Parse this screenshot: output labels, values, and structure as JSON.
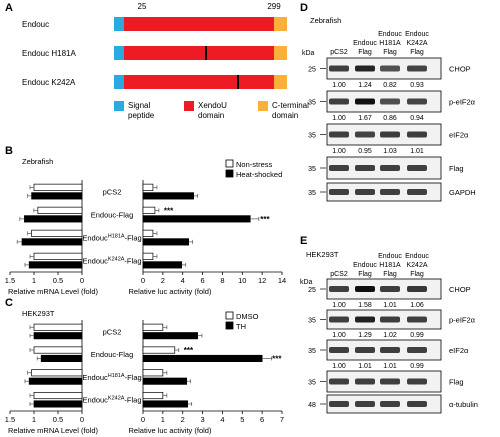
{
  "panels": {
    "A": {
      "letter": "A",
      "constructs": [
        {
          "name": "Endouc",
          "mutation_mark": ""
        },
        {
          "name": "Endouc H181A",
          "mutation_mark": "H181A"
        },
        {
          "name": "Endouc K242A",
          "mutation_mark": "K242A"
        }
      ],
      "positions": {
        "start": "25",
        "end": "299"
      },
      "legend": [
        {
          "label_lines": [
            "Signal",
            "peptide"
          ],
          "color": "#29ABE2"
        },
        {
          "label_lines": [
            "XendoU",
            "domain"
          ],
          "color": "#ED1C24"
        },
        {
          "label_lines": [
            "C-terminal",
            "domain"
          ],
          "color": "#FBB03B"
        }
      ]
    },
    "B": {
      "letter": "B",
      "species": "Zebrafish",
      "legend": [
        {
          "label": "Non-stress",
          "fill": "#ffffff"
        },
        {
          "label": "Heat-shocked",
          "fill": "#000000"
        }
      ],
      "row_labels": [
        {
          "base": "pCS2",
          "sup": "",
          "tail": ""
        },
        {
          "base": "Endouc-Flag",
          "sup": "",
          "tail": ""
        },
        {
          "base": "Endouc",
          "sup": "H181A",
          "tail": "-Flag"
        },
        {
          "base": "Endouc",
          "sup": "K242A",
          "tail": "-Flag"
        }
      ],
      "left_chart": {
        "xlabel": "Relative mRNA Level (fold)",
        "ticks": [
          "1.5",
          "1",
          "0.5",
          "0"
        ],
        "chart_data": {
          "type": "bar",
          "categories": [
            "pCS2",
            "Endouc-Flag",
            "EndoucH181A-Flag",
            "EndoucK242A-Flag"
          ],
          "series": [
            {
              "name": "Non-stress",
              "values": [
                1.0,
                0.92,
                1.05,
                1.0
              ]
            },
            {
              "name": "Heat-shocked",
              "values": [
                1.05,
                1.2,
                1.25,
                1.1
              ]
            }
          ],
          "xlim": [
            0,
            1.5
          ]
        }
      },
      "right_chart": {
        "xlabel": "Relative luc activity (fold)",
        "ticks": [
          "0",
          "2",
          "4",
          "6",
          "8",
          "10",
          "12",
          "14"
        ],
        "significance": [
          "***",
          "***"
        ],
        "chart_data": {
          "type": "bar",
          "categories": [
            "pCS2",
            "Endouc-Flag",
            "EndoucH181A-Flag",
            "EndoucK242A-Flag"
          ],
          "series": [
            {
              "name": "Non-stress",
              "values": [
                1.0,
                1.2,
                1.0,
                1.0
              ]
            },
            {
              "name": "Heat-shocked",
              "values": [
                5.1,
                10.8,
                4.6,
                3.9
              ]
            }
          ],
          "xlim": [
            0,
            14
          ]
        }
      }
    },
    "C": {
      "letter": "C",
      "species": "HEK293T",
      "legend": [
        {
          "label": "DMSO",
          "fill": "#ffffff"
        },
        {
          "label": "TH",
          "fill": "#000000"
        }
      ],
      "row_labels": [
        {
          "base": "pCS2",
          "sup": "",
          "tail": ""
        },
        {
          "base": "Endouc-Flag",
          "sup": "",
          "tail": ""
        },
        {
          "base": "Endouc",
          "sup": "H181A",
          "tail": "-Flag"
        },
        {
          "base": "Endouc",
          "sup": "K242A",
          "tail": "-Flag"
        }
      ],
      "left_chart": {
        "xlabel": "Relative mRNA Level (fold)",
        "ticks": [
          "1.5",
          "1",
          "0.5",
          "0"
        ],
        "chart_data": {
          "type": "bar",
          "categories": [
            "pCS2",
            "Endouc-Flag",
            "EndoucH181A-Flag",
            "EndoucK242A-Flag"
          ],
          "series": [
            {
              "name": "DMSO",
              "values": [
                1.0,
                1.0,
                1.05,
                1.0
              ]
            },
            {
              "name": "TH",
              "values": [
                1.0,
                0.85,
                1.1,
                1.0
              ]
            }
          ],
          "xlim": [
            0,
            1.5
          ]
        }
      },
      "right_chart": {
        "xlabel": "Relative luc activity (fold)",
        "ticks": [
          "0",
          "1",
          "2",
          "3",
          "4",
          "5",
          "6",
          "7"
        ],
        "significance": [
          "***",
          "***"
        ],
        "chart_data": {
          "type": "bar",
          "categories": [
            "pCS2",
            "Endouc-Flag",
            "EndoucH181A-Flag",
            "EndoucK242A-Flag"
          ],
          "series": [
            {
              "name": "DMSO",
              "values": [
                1.0,
                1.6,
                1.0,
                1.0
              ]
            },
            {
              "name": "TH",
              "values": [
                2.75,
                6.0,
                2.2,
                2.25
              ]
            }
          ],
          "xlim": [
            0,
            7
          ]
        }
      }
    },
    "D": {
      "letter": "D",
      "species": "Zebrafish",
      "kda_label": "kDa",
      "lanes": [
        [
          "pCS2"
        ],
        [
          "Endouc",
          "Flag"
        ],
        [
          "Endouc",
          "H181A",
          "Flag"
        ],
        [
          "Endouc",
          "K242A",
          "Flag"
        ]
      ],
      "blots": [
        {
          "protein": "CHOP",
          "kda": "25",
          "quant": [
            "1.00",
            "1.24",
            "0.82",
            "0.93"
          ]
        },
        {
          "protein": "p-eIF2α",
          "kda": "35",
          "quant": [
            "1.00",
            "1.67",
            "0.86",
            "0.94"
          ]
        },
        {
          "protein": "eIF2α",
          "kda": "35",
          "quant": [
            "1.00",
            "0.95",
            "1.03",
            "1.01"
          ]
        },
        {
          "protein": "Flag",
          "kda": "35",
          "quant": []
        },
        {
          "protein": "GAPDH",
          "kda": "35",
          "quant": []
        }
      ]
    },
    "E": {
      "letter": "E",
      "species": "HEK293T",
      "kda_label": "kDa",
      "lanes": [
        [
          "pCS2"
        ],
        [
          "Endouc",
          "Flag"
        ],
        [
          "Endouc",
          "H181A",
          "Flag"
        ],
        [
          "Endouc",
          "K242A",
          "Flag"
        ]
      ],
      "blots": [
        {
          "protein": "CHOP",
          "kda": "25",
          "quant": [
            "1.00",
            "1.58",
            "1.01",
            "1.06"
          ]
        },
        {
          "protein": "p-eIF2α",
          "kda": "35",
          "quant": [
            "1.00",
            "1.29",
            "1.02",
            "0.99"
          ]
        },
        {
          "protein": "eIF2α",
          "kda": "35",
          "quant": [
            "1.00",
            "1.01",
            "1.01",
            "0.99"
          ]
        },
        {
          "protein": "Flag",
          "kda": "35",
          "quant": []
        },
        {
          "protein": "α-tubulin",
          "kda": "48",
          "quant": []
        }
      ]
    }
  }
}
